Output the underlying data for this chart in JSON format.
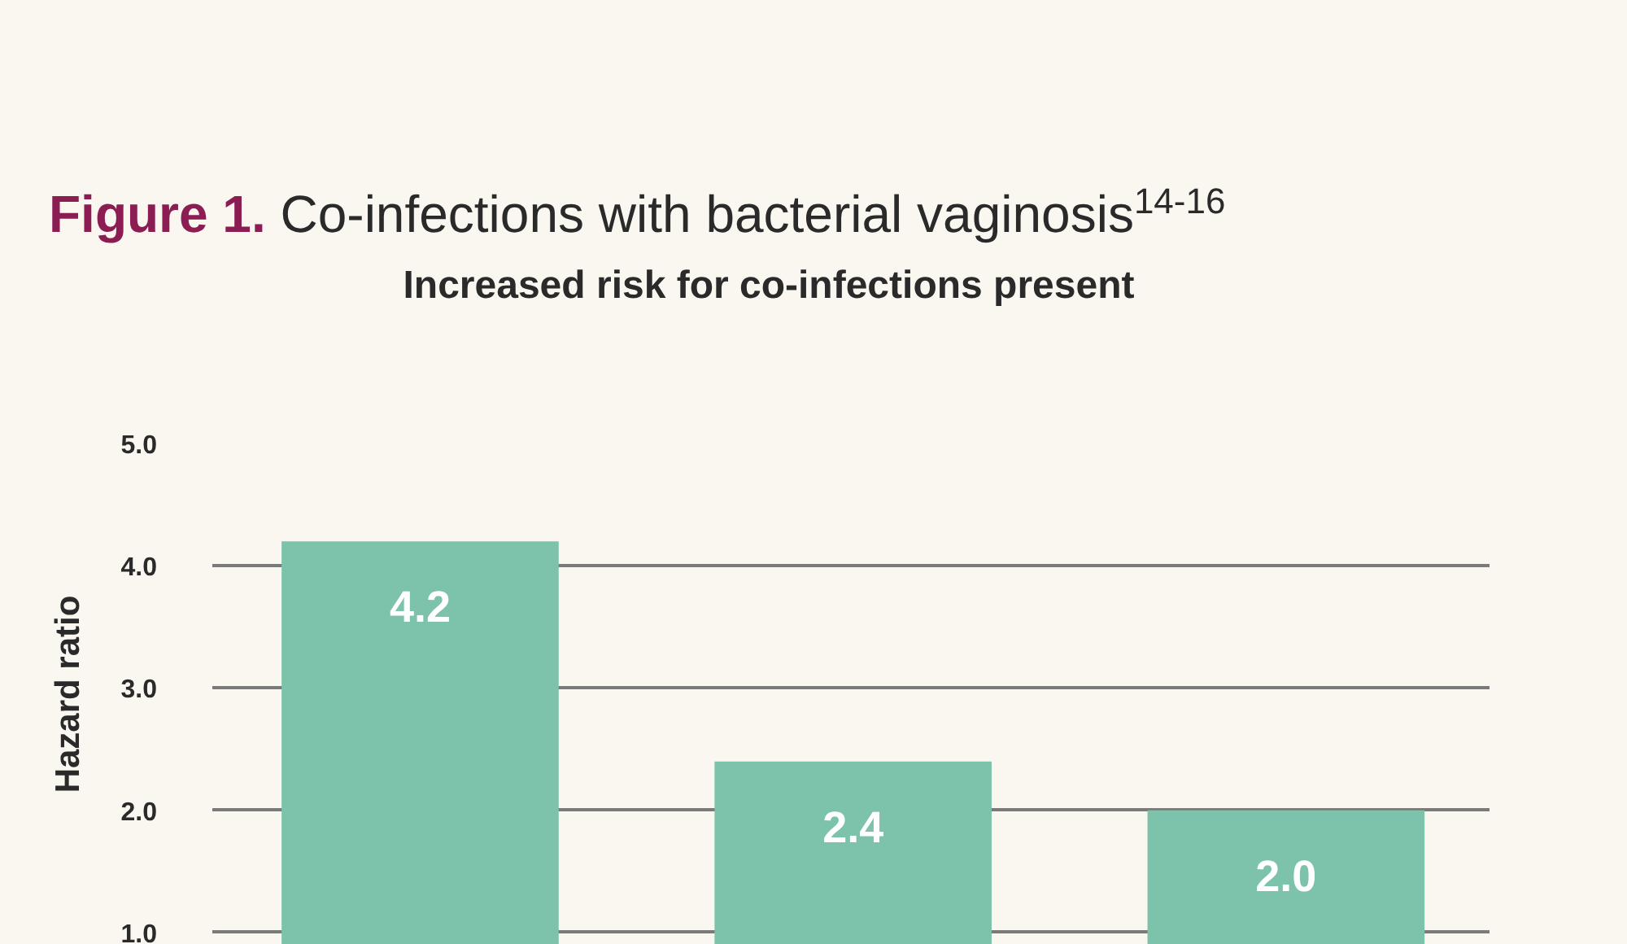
{
  "chart_data": {
    "type": "bar",
    "title": "Figure 1. Co-infections with bacterial vaginosis$^{14-16}$",
    "subtitle": "Increased risk for co-infections present",
    "ylabel": "Hazard ratio",
    "categories": [
      null,
      null,
      null
    ],
    "values": [
      4.2,
      2.4,
      2.0
    ],
    "color": "#7dc2aa",
    "ylim": [
      0.9,
      5.0
    ],
    "value_labels": [
      "4.2",
      "2.4",
      "2.0"
    ],
    "yticks": [
      {
        "value": 1,
        "label": "1.0"
      },
      {
        "value": 2,
        "label": "2.0"
      },
      {
        "value": 3,
        "label": "3.0"
      },
      {
        "value": 4,
        "label": "4.0"
      },
      {
        "value": 5,
        "label": "5.0"
      }
    ],
    "grid": "y",
    "tick_labels": "y"
  }
}
